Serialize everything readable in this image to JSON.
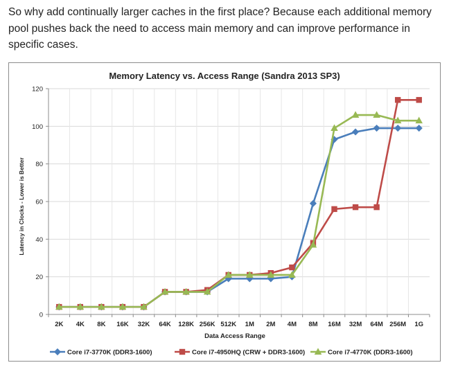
{
  "article": {
    "paragraph": "So why add continually larger caches in the first place? Because each additional memory pool pushes back the need to access main memory and can improve performance in specific cases."
  },
  "chart_data": {
    "type": "line",
    "title": "Memory Latency vs. Access Range (Sandra 2013 SP3)",
    "xlabel": "Data Access Range",
    "ylabel": "Latency in Clocks - Lower is Better",
    "ylim": [
      0,
      120
    ],
    "yticks": [
      0,
      20,
      40,
      60,
      80,
      100,
      120
    ],
    "grid": true,
    "legend_position": "bottom",
    "categories": [
      "2K",
      "4K",
      "8K",
      "16K",
      "32K",
      "64K",
      "128K",
      "256K",
      "512K",
      "1M",
      "2M",
      "4M",
      "8M",
      "16M",
      "32M",
      "64M",
      "256M",
      "1G"
    ],
    "series": [
      {
        "name": "Core i7-3770K (DDR3-1600)",
        "color": "#4a7ebb",
        "marker": "diamond",
        "values": [
          4,
          4,
          4,
          4,
          4,
          12,
          12,
          12,
          19,
          19,
          19,
          20,
          59,
          93,
          97,
          99,
          99,
          99
        ]
      },
      {
        "name": "Core i7-4950HQ (CRW + DDR3-1600)",
        "color": "#be4b48",
        "marker": "square",
        "values": [
          4,
          4,
          4,
          4,
          4,
          12,
          12,
          13,
          21,
          21,
          22,
          25,
          38,
          56,
          57,
          57,
          114,
          114
        ]
      },
      {
        "name": "Core i7-4770K (DDR3-1600)",
        "color": "#98b954",
        "marker": "triangle",
        "values": [
          4,
          4,
          4,
          4,
          4,
          12,
          12,
          12,
          21,
          21,
          21,
          21,
          37,
          99,
          106,
          106,
          103,
          103
        ]
      }
    ]
  }
}
